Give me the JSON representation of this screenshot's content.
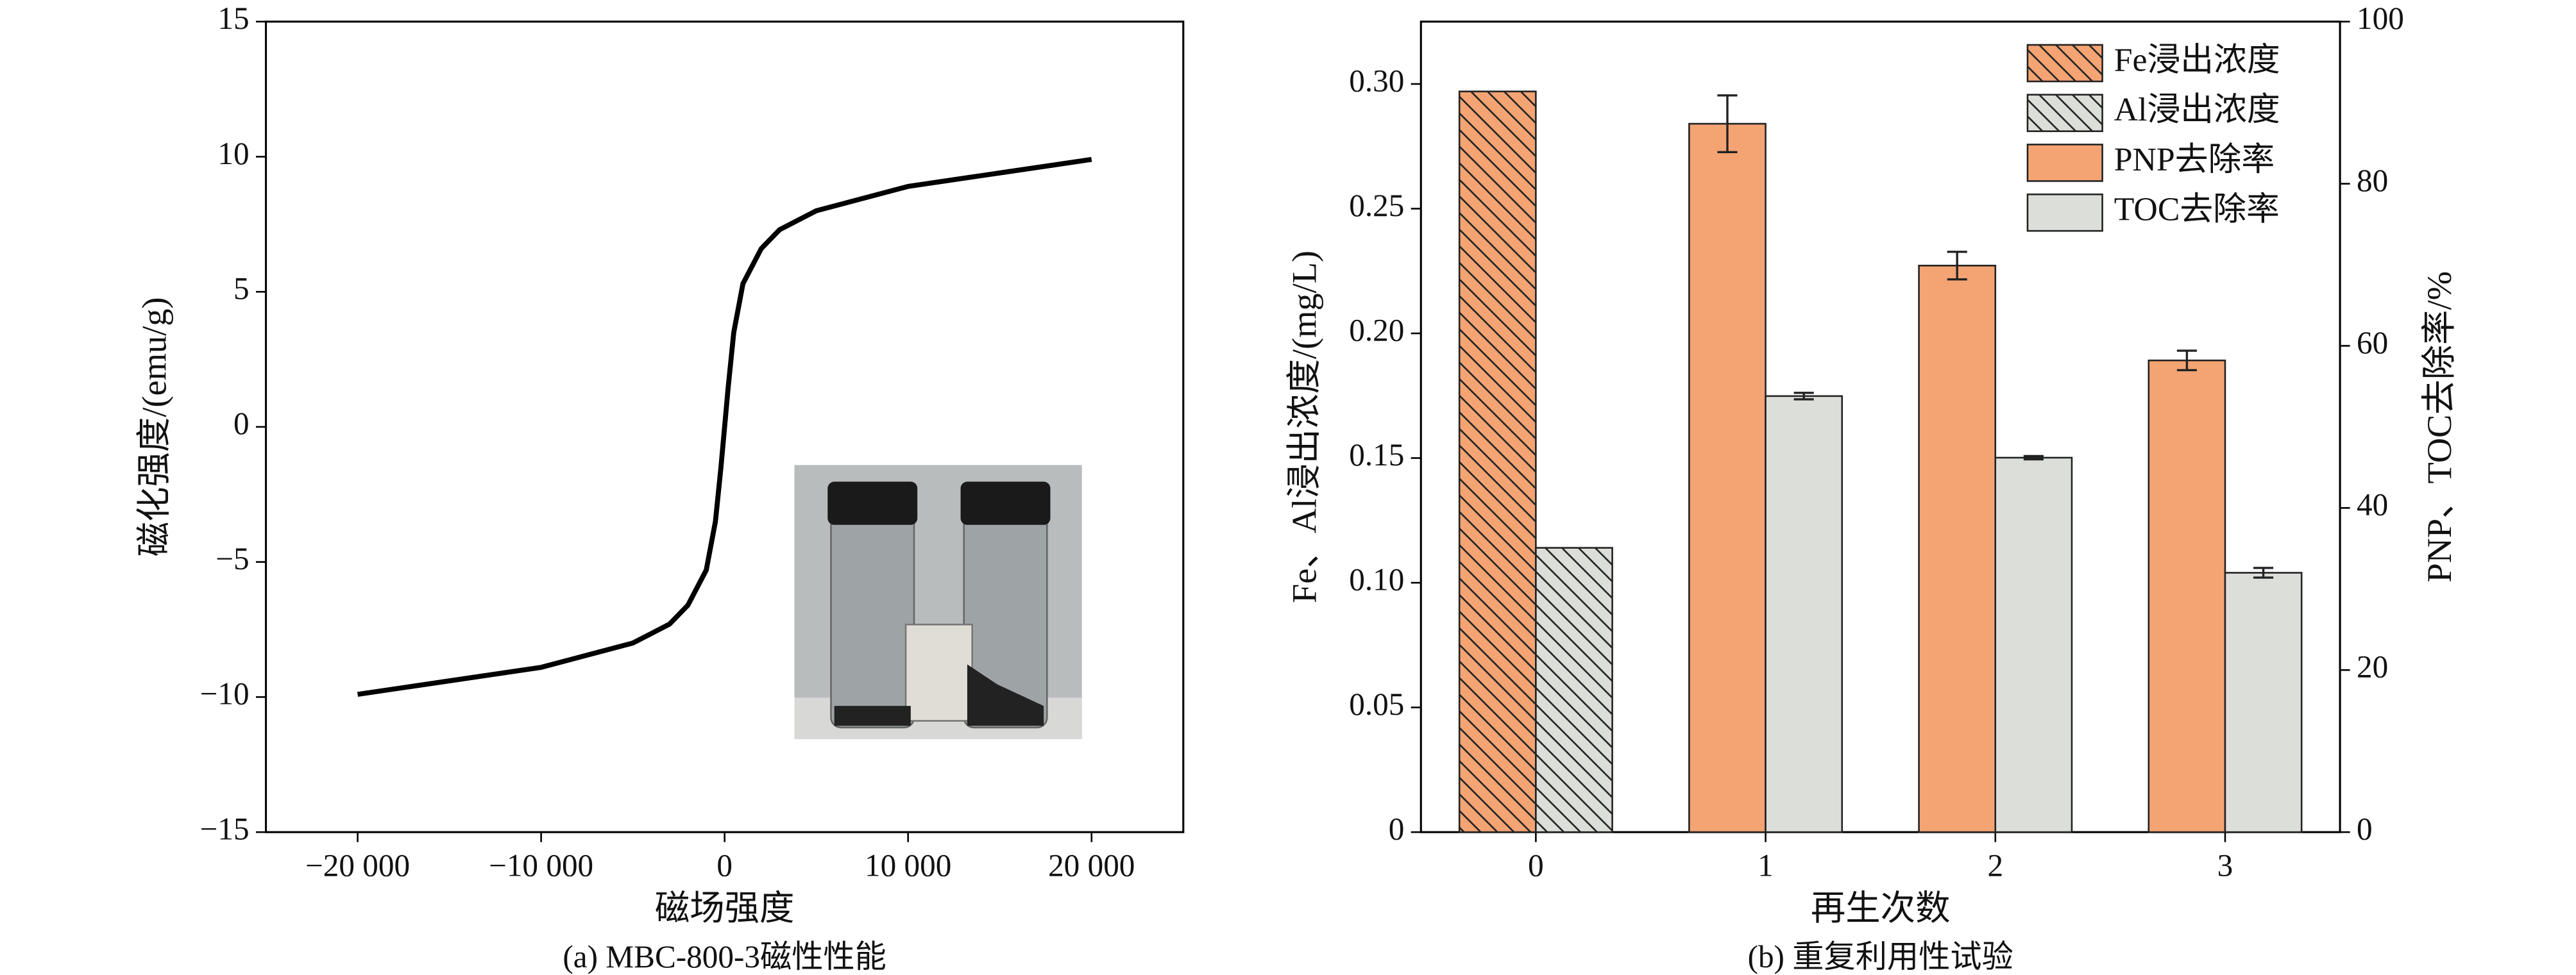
{
  "chart_data": [
    {
      "type": "line",
      "xlabel": "磁场强度",
      "ylabel": "磁化强度/(emu/g)",
      "caption": "(a) MBC-800-3磁性性能",
      "x": [
        -20000,
        -15000,
        -10000,
        -5000,
        -3000,
        -2000,
        -1000,
        -500,
        -200,
        0,
        200,
        500,
        1000,
        2000,
        3000,
        5000,
        10000,
        15000,
        20000
      ],
      "series": [
        {
          "color": "#000000",
          "values": [
            -9.9,
            -9.4,
            -8.9,
            -8.0,
            -7.3,
            -6.6,
            -5.3,
            -3.5,
            -1.5,
            0,
            1.5,
            3.5,
            5.3,
            6.6,
            7.3,
            8.0,
            8.9,
            9.4,
            9.9
          ]
        }
      ],
      "xlim": [
        -25000,
        25000
      ],
      "xticks": [
        {
          "value": -20000,
          "label": "−20 000"
        },
        {
          "value": -10000,
          "label": "−10 000"
        },
        0,
        {
          "value": 10000,
          "label": "10 000"
        },
        {
          "value": 20000,
          "label": "20 000"
        }
      ],
      "ylim": [
        -15,
        15
      ],
      "yticks": [
        {
          "value": -15,
          "label": "−15"
        },
        {
          "value": -10,
          "label": "−10"
        },
        {
          "value": -5,
          "label": "−5"
        },
        0,
        5,
        10,
        15
      ]
    },
    {
      "type": "bar",
      "xlabel": "再生次数",
      "ylabel": "Fe、Al浸出浓度/(mg/L)",
      "y2label": "PNP、TOC去除率/%",
      "caption": "(b) 重复利用性试验",
      "categories": [
        "0",
        "1",
        "2",
        "3"
      ],
      "series": [
        {
          "name": "Fe浸出浓度",
          "color": "#f4a473",
          "hatch": true,
          "values": [
            0.297,
            null,
            null,
            null
          ],
          "errors": [
            null,
            null,
            null,
            null
          ]
        },
        {
          "name": "Al浸出浓度",
          "color": "#dcdfd9",
          "hatch": true,
          "values": [
            0.114,
            null,
            null,
            null
          ],
          "errors": [
            null,
            null,
            null,
            null
          ]
        },
        {
          "name": "PNP去除率",
          "color": "#f4a473",
          "axis": "y2",
          "values": [
            null,
            87.4,
            69.9,
            58.2
          ],
          "errors": [
            null,
            3.5,
            1.7,
            1.2
          ]
        },
        {
          "name": "TOC去除率",
          "color": "#dcdfd9",
          "axis": "y2",
          "values": [
            null,
            53.8,
            46.2,
            32.0
          ],
          "errors": [
            null,
            0.4,
            0.2,
            0.6
          ]
        }
      ],
      "ylim": [
        0,
        0.325
      ],
      "yticks": [
        0,
        0.05,
        {
          "value": 0.1,
          "label": "0.10"
        },
        0.15,
        {
          "value": 0.2,
          "label": "0.20"
        },
        0.25,
        {
          "value": 0.3,
          "label": "0.30"
        }
      ],
      "y2lim": [
        0,
        100
      ],
      "y2ticks": [
        0,
        20,
        40,
        60,
        80,
        100
      ],
      "legend": "upper right"
    }
  ]
}
